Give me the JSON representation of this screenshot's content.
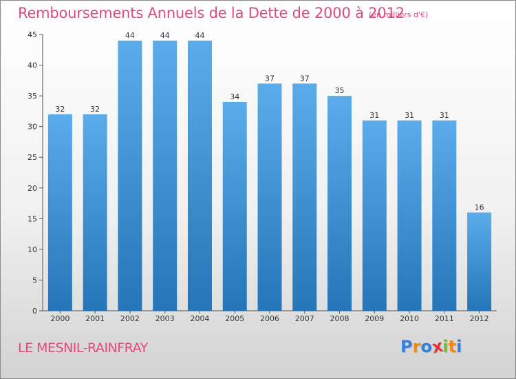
{
  "chart_data": {
    "type": "bar",
    "title": "Remboursements Annuels de la Dette de 2000 à 2012",
    "subtitle": "(en milliers d'€)",
    "categories": [
      "2000",
      "2001",
      "2002",
      "2003",
      "2004",
      "2005",
      "2006",
      "2007",
      "2008",
      "2009",
      "2010",
      "2011",
      "2012"
    ],
    "values": [
      32,
      32,
      44,
      44,
      44,
      34,
      37,
      37,
      35,
      31,
      31,
      31,
      16
    ],
    "ylim": [
      0,
      45
    ],
    "yticks": [
      0,
      5,
      10,
      15,
      20,
      25,
      30,
      35,
      40,
      45
    ],
    "xlabel": "",
    "ylabel": "",
    "grid": false,
    "bar_color_top": "#5aacea",
    "bar_color_bottom": "#2476b8"
  },
  "footer": {
    "commune": "LE MESNIL-RAINFRAY",
    "logo_letters": [
      "P",
      "r",
      "o",
      "x",
      "i",
      "t",
      "i"
    ],
    "logo_colors": [
      "#3a7fd6",
      "#f08a1e",
      "#3a7fd6",
      "#e6323c",
      "#7ab83a",
      "#f08a1e",
      "#3a7fd6"
    ]
  },
  "colors": {
    "accent": "#e0497d",
    "axis": "#555555"
  }
}
